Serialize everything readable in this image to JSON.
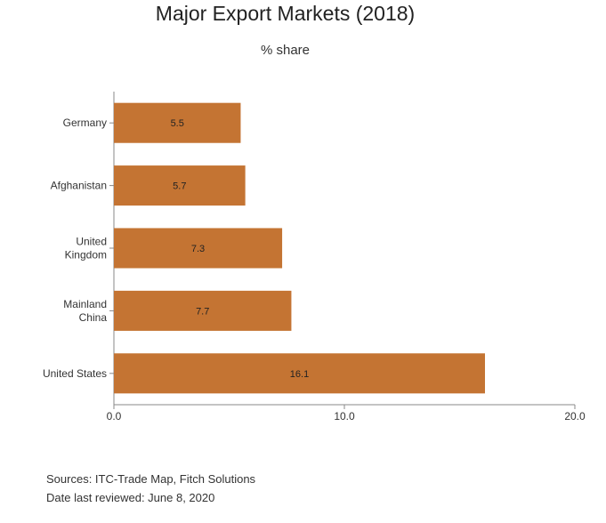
{
  "chart_data": {
    "type": "bar",
    "orientation": "horizontal",
    "title": "Major Export Markets (2018)",
    "subtitle": "% share",
    "categories": [
      "Germany",
      "Afghanistan",
      "United Kingdom",
      "Mainland China",
      "United States"
    ],
    "category_lines": [
      [
        "Germany"
      ],
      [
        "Afghanistan"
      ],
      [
        "United",
        "Kingdom"
      ],
      [
        "Mainland",
        "China"
      ],
      [
        "United States"
      ]
    ],
    "values": [
      5.5,
      5.7,
      7.3,
      7.7,
      16.1
    ],
    "value_labels": [
      "5.5",
      "5.7",
      "7.3",
      "7.7",
      "16.1"
    ],
    "xlim": [
      0,
      20
    ],
    "xticks": [
      0,
      10,
      20
    ],
    "xtick_labels": [
      "0.0",
      "10.0",
      "20.0"
    ],
    "grid": false,
    "legend": "none",
    "bar_color": "#c47433"
  },
  "source": {
    "line1": "Sources: ITC-Trade Map, Fitch Solutions",
    "line2": "Date last reviewed: June 8, 2020"
  }
}
